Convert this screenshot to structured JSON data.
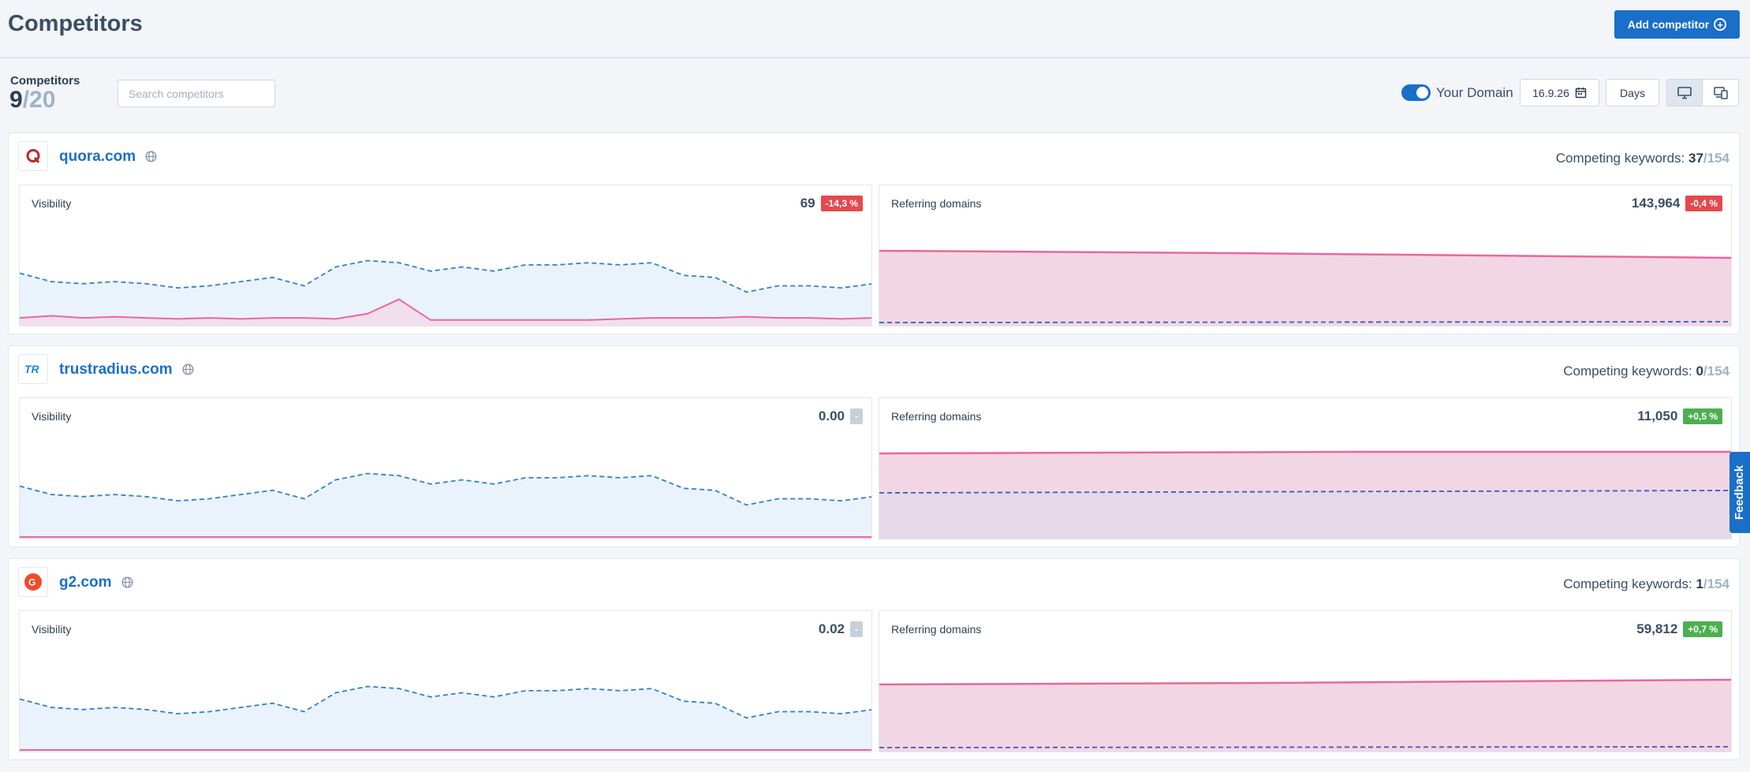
{
  "header": {
    "title": "Competitors",
    "add_button": "Add competitor"
  },
  "toolbar": {
    "competitors_label": "Competitors",
    "count": "9",
    "total": "/20",
    "search_placeholder": "Search competitors",
    "toggle_label": "Your Domain",
    "toggle_on": true,
    "date": "16.9.26",
    "period": "Days",
    "view_modes": [
      "desktop",
      "mobile"
    ],
    "active_view": "desktop"
  },
  "competitors": [
    {
      "domain": "quora.com",
      "logo": "quora-logo",
      "keywords_label": "Competing keywords:",
      "keywords": "37",
      "keywords_total": "/154",
      "visibility": {
        "label": "Visibility",
        "value": "69",
        "change": "-14,3 %",
        "change_type": "negative"
      },
      "referring": {
        "label": "Referring domains",
        "value": "143,964",
        "change": "-0,4 %",
        "change_type": "negative"
      }
    },
    {
      "domain": "trustradius.com",
      "logo": "trustradius-logo",
      "keywords_label": "Competing keywords:",
      "keywords": "0",
      "keywords_total": "/154",
      "visibility": {
        "label": "Visibility",
        "value": "0.00",
        "change": "-",
        "change_type": "neutral"
      },
      "referring": {
        "label": "Referring domains",
        "value": "11,050",
        "change": "+0,5 %",
        "change_type": "positive"
      }
    },
    {
      "domain": "g2.com",
      "logo": "g2-logo",
      "keywords_label": "Competing keywords:",
      "keywords": "1",
      "keywords_total": "/154",
      "visibility": {
        "label": "Visibility",
        "value": "0.02",
        "change": "-",
        "change_type": "neutral"
      },
      "referring": {
        "label": "Referring domains",
        "value": "59,812",
        "change": "+0,7 %",
        "change_type": "positive"
      }
    }
  ],
  "feedback_label": "Feedback",
  "colors": {
    "accent": "#1a6fc9",
    "pink_line": "#e8679f",
    "pink_fill": "#f3d6e4",
    "blue_fill": "#eaf3fc",
    "negative": "#e5484d",
    "positive": "#4caf50"
  }
}
